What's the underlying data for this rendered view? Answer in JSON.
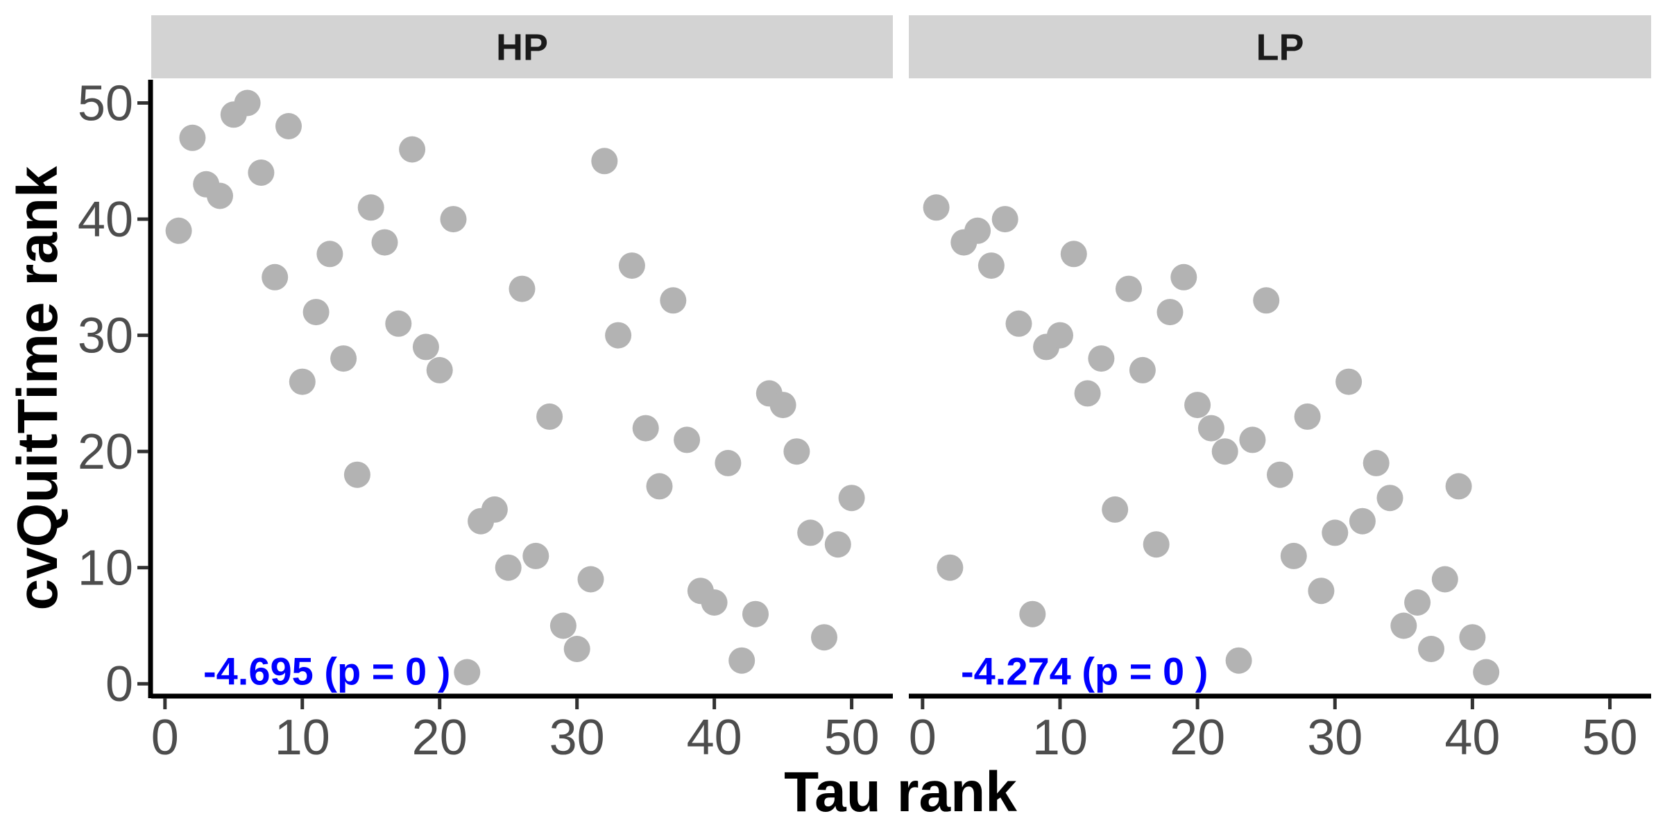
{
  "chart_data": {
    "type": "scatter",
    "xlabel": "Tau rank",
    "ylabel": "cvQuitTime rank",
    "xlim": [
      -1,
      53
    ],
    "ylim": [
      -1,
      52
    ],
    "x_ticks": [
      0,
      10,
      20,
      30,
      40,
      50
    ],
    "y_ticks": [
      0,
      10,
      20,
      30,
      40,
      50
    ],
    "grid": false,
    "point_color": "#b3b3b3",
    "annotation_color": "#0000ff",
    "strip_color": "#d3d3d3",
    "panels": [
      {
        "label": "HP",
        "annotation": "-4.695 (p = 0 )",
        "points": [
          {
            "x": 1,
            "y": 39
          },
          {
            "x": 2,
            "y": 47
          },
          {
            "x": 3,
            "y": 43
          },
          {
            "x": 4,
            "y": 42
          },
          {
            "x": 5,
            "y": 49
          },
          {
            "x": 6,
            "y": 50
          },
          {
            "x": 7,
            "y": 44
          },
          {
            "x": 8,
            "y": 35
          },
          {
            "x": 9,
            "y": 48
          },
          {
            "x": 10,
            "y": 26
          },
          {
            "x": 11,
            "y": 32
          },
          {
            "x": 12,
            "y": 37
          },
          {
            "x": 13,
            "y": 28
          },
          {
            "x": 14,
            "y": 18
          },
          {
            "x": 15,
            "y": 41
          },
          {
            "x": 16,
            "y": 38
          },
          {
            "x": 17,
            "y": 31
          },
          {
            "x": 18,
            "y": 46
          },
          {
            "x": 19,
            "y": 29
          },
          {
            "x": 20,
            "y": 27
          },
          {
            "x": 21,
            "y": 40
          },
          {
            "x": 22,
            "y": 1
          },
          {
            "x": 23,
            "y": 14
          },
          {
            "x": 24,
            "y": 15
          },
          {
            "x": 25,
            "y": 10
          },
          {
            "x": 26,
            "y": 34
          },
          {
            "x": 27,
            "y": 11
          },
          {
            "x": 28,
            "y": 23
          },
          {
            "x": 29,
            "y": 5
          },
          {
            "x": 30,
            "y": 3
          },
          {
            "x": 31,
            "y": 9
          },
          {
            "x": 32,
            "y": 45
          },
          {
            "x": 33,
            "y": 30
          },
          {
            "x": 34,
            "y": 36
          },
          {
            "x": 35,
            "y": 22
          },
          {
            "x": 36,
            "y": 17
          },
          {
            "x": 37,
            "y": 33
          },
          {
            "x": 38,
            "y": 21
          },
          {
            "x": 39,
            "y": 8
          },
          {
            "x": 40,
            "y": 7
          },
          {
            "x": 41,
            "y": 19
          },
          {
            "x": 42,
            "y": 2
          },
          {
            "x": 43,
            "y": 6
          },
          {
            "x": 44,
            "y": 25
          },
          {
            "x": 45,
            "y": 24
          },
          {
            "x": 46,
            "y": 20
          },
          {
            "x": 47,
            "y": 13
          },
          {
            "x": 48,
            "y": 4
          },
          {
            "x": 49,
            "y": 12
          },
          {
            "x": 50,
            "y": 16
          }
        ]
      },
      {
        "label": "LP",
        "annotation": "-4.274 (p = 0 )",
        "points": [
          {
            "x": 1,
            "y": 41
          },
          {
            "x": 2,
            "y": 10
          },
          {
            "x": 3,
            "y": 38
          },
          {
            "x": 4,
            "y": 39
          },
          {
            "x": 5,
            "y": 36
          },
          {
            "x": 6,
            "y": 40
          },
          {
            "x": 7,
            "y": 31
          },
          {
            "x": 8,
            "y": 6
          },
          {
            "x": 9,
            "y": 29
          },
          {
            "x": 10,
            "y": 30
          },
          {
            "x": 11,
            "y": 37
          },
          {
            "x": 12,
            "y": 25
          },
          {
            "x": 13,
            "y": 28
          },
          {
            "x": 14,
            "y": 15
          },
          {
            "x": 15,
            "y": 34
          },
          {
            "x": 16,
            "y": 27
          },
          {
            "x": 17,
            "y": 12
          },
          {
            "x": 18,
            "y": 32
          },
          {
            "x": 19,
            "y": 35
          },
          {
            "x": 20,
            "y": 24
          },
          {
            "x": 21,
            "y": 22
          },
          {
            "x": 22,
            "y": 20
          },
          {
            "x": 23,
            "y": 2
          },
          {
            "x": 24,
            "y": 21
          },
          {
            "x": 25,
            "y": 33
          },
          {
            "x": 26,
            "y": 18
          },
          {
            "x": 27,
            "y": 11
          },
          {
            "x": 28,
            "y": 23
          },
          {
            "x": 29,
            "y": 8
          },
          {
            "x": 30,
            "y": 13
          },
          {
            "x": 31,
            "y": 26
          },
          {
            "x": 32,
            "y": 14
          },
          {
            "x": 33,
            "y": 19
          },
          {
            "x": 34,
            "y": 16
          },
          {
            "x": 35,
            "y": 5
          },
          {
            "x": 36,
            "y": 7
          },
          {
            "x": 37,
            "y": 3
          },
          {
            "x": 38,
            "y": 9
          },
          {
            "x": 39,
            "y": 17
          },
          {
            "x": 40,
            "y": 4
          },
          {
            "x": 41,
            "y": 1
          }
        ]
      }
    ]
  }
}
